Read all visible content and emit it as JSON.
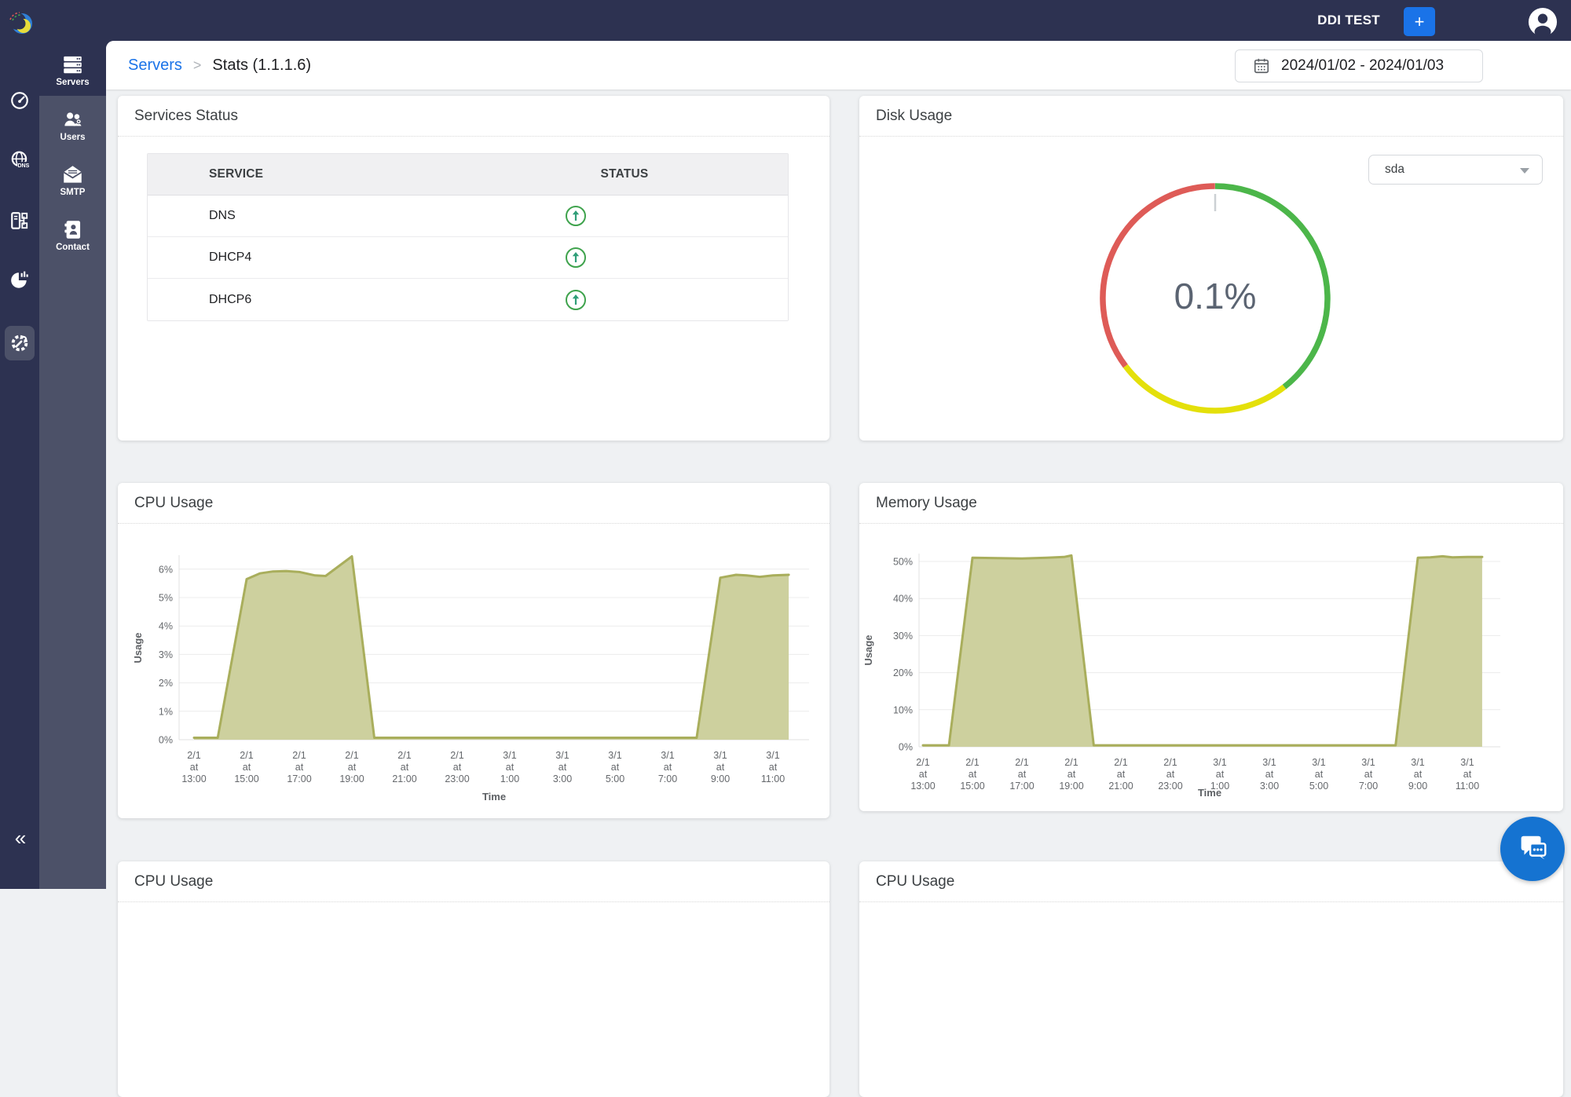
{
  "topbar": {
    "brand": "DDI TEST",
    "add_label": "+"
  },
  "breadcrumb": {
    "parent": "Servers",
    "separator": ">",
    "current": "Stats (1.1.1.6)"
  },
  "date_range_value": "2024/01/02 - 2024/01/03",
  "sidebar": {
    "collapse_label": "«",
    "primary": [
      {
        "name": "logo"
      },
      {
        "name": "dashboard"
      },
      {
        "name": "dns"
      },
      {
        "name": "ipam"
      },
      {
        "name": "reports"
      },
      {
        "name": "settings",
        "selected": true
      }
    ],
    "secondary": [
      {
        "label": "Servers",
        "selected": true
      },
      {
        "label": "Users",
        "selected": false
      },
      {
        "label": "SMTP",
        "selected": false
      },
      {
        "label": "Contact",
        "selected": false
      }
    ]
  },
  "cards": {
    "services": {
      "title": "Services Status",
      "headers": [
        "SERVICE",
        "STATUS"
      ],
      "rows": [
        {
          "service": "DNS",
          "status": "up"
        },
        {
          "service": "DHCP4",
          "status": "up"
        },
        {
          "service": "DHCP6",
          "status": "up"
        }
      ]
    },
    "disk": {
      "title": "Disk Usage",
      "device": "sda",
      "value_label": "0.1%"
    },
    "cpu": {
      "title": "CPU Usage"
    },
    "memory": {
      "title": "Memory Usage"
    },
    "bottom_left": {
      "title": "CPU Usage"
    },
    "bottom_right": {
      "title": "CPU Usage"
    }
  },
  "status_colors": {
    "up_green": "#3fa34d",
    "arrow_green": "#2f9e78"
  },
  "chart_data": [
    {
      "id": "cpu",
      "type": "area",
      "title": "CPU Usage",
      "xlabel": "Time",
      "ylabel": "Usage",
      "ylim": [
        0,
        6.5
      ],
      "line_color": "#a9ae5c",
      "fill_color": "#cdd09e",
      "y_ticks": [
        {
          "v": 0,
          "label": "0%"
        },
        {
          "v": 1,
          "label": "1%"
        },
        {
          "v": 2,
          "label": "2%"
        },
        {
          "v": 3,
          "label": "3%"
        },
        {
          "v": 4,
          "label": "4%"
        },
        {
          "v": 5,
          "label": "5%"
        },
        {
          "v": 6,
          "label": "6%"
        }
      ],
      "x_ticks": [
        {
          "h": 0,
          "lines": [
            "2/1",
            "at",
            "13:00"
          ]
        },
        {
          "h": 2,
          "lines": [
            "2/1",
            "at",
            "15:00"
          ]
        },
        {
          "h": 4,
          "lines": [
            "2/1",
            "at",
            "17:00"
          ]
        },
        {
          "h": 6,
          "lines": [
            "2/1",
            "at",
            "19:00"
          ]
        },
        {
          "h": 8,
          "lines": [
            "2/1",
            "at",
            "21:00"
          ]
        },
        {
          "h": 10,
          "lines": [
            "2/1",
            "at",
            "23:00"
          ]
        },
        {
          "h": 12,
          "lines": [
            "3/1",
            "at",
            "1:00"
          ]
        },
        {
          "h": 14,
          "lines": [
            "3/1",
            "at",
            "3:00"
          ]
        },
        {
          "h": 16,
          "lines": [
            "3/1",
            "at",
            "5:00"
          ]
        },
        {
          "h": 18,
          "lines": [
            "3/1",
            "at",
            "7:00"
          ]
        },
        {
          "h": 20,
          "lines": [
            "3/1",
            "at",
            "9:00"
          ]
        },
        {
          "h": 22,
          "lines": [
            "3/1",
            "at",
            "11:00"
          ]
        }
      ],
      "points": [
        [
          0,
          0.07
        ],
        [
          0.9,
          0.07
        ],
        [
          2,
          5.65
        ],
        [
          2.5,
          5.85
        ],
        [
          3,
          5.92
        ],
        [
          3.5,
          5.93
        ],
        [
          4,
          5.9
        ],
        [
          4.6,
          5.78
        ],
        [
          5,
          5.76
        ],
        [
          6,
          6.45
        ],
        [
          6.85,
          0.07
        ],
        [
          9,
          0.07
        ],
        [
          12,
          0.07
        ],
        [
          15,
          0.07
        ],
        [
          18,
          0.07
        ],
        [
          19.1,
          0.07
        ],
        [
          20,
          5.7
        ],
        [
          20.6,
          5.8
        ],
        [
          21,
          5.78
        ],
        [
          21.5,
          5.73
        ],
        [
          22,
          5.78
        ],
        [
          22.6,
          5.8
        ]
      ]
    },
    {
      "id": "memory",
      "type": "area",
      "title": "Memory Usage",
      "xlabel": "Time",
      "ylabel": "Usage",
      "ylim": [
        0,
        52
      ],
      "line_color": "#a9ae5c",
      "fill_color": "#cdd09e",
      "y_ticks": [
        {
          "v": 0,
          "label": "0%"
        },
        {
          "v": 10,
          "label": "10%"
        },
        {
          "v": 20,
          "label": "20%"
        },
        {
          "v": 30,
          "label": "30%"
        },
        {
          "v": 40,
          "label": "40%"
        },
        {
          "v": 50,
          "label": "50%"
        }
      ],
      "x_ticks": [
        {
          "h": 0,
          "lines": [
            "2/1",
            "at",
            "13:00"
          ]
        },
        {
          "h": 2,
          "lines": [
            "2/1",
            "at",
            "15:00"
          ]
        },
        {
          "h": 4,
          "lines": [
            "2/1",
            "at",
            "17:00"
          ]
        },
        {
          "h": 6,
          "lines": [
            "2/1",
            "at",
            "19:00"
          ]
        },
        {
          "h": 8,
          "lines": [
            "2/1",
            "at",
            "21:00"
          ]
        },
        {
          "h": 10,
          "lines": [
            "2/1",
            "at",
            "23:00"
          ]
        },
        {
          "h": 12,
          "lines": [
            "3/1",
            "at",
            "1:00"
          ]
        },
        {
          "h": 14,
          "lines": [
            "3/1",
            "at",
            "3:00"
          ]
        },
        {
          "h": 16,
          "lines": [
            "3/1",
            "at",
            "5:00"
          ]
        },
        {
          "h": 18,
          "lines": [
            "3/1",
            "at",
            "7:00"
          ]
        },
        {
          "h": 20,
          "lines": [
            "3/1",
            "at",
            "9:00"
          ]
        },
        {
          "h": 22,
          "lines": [
            "3/1",
            "at",
            "11:00"
          ]
        }
      ],
      "points": [
        [
          0,
          0.4
        ],
        [
          1.05,
          0.4
        ],
        [
          2,
          51
        ],
        [
          3,
          50.9
        ],
        [
          4,
          50.8
        ],
        [
          5,
          51
        ],
        [
          5.7,
          51.2
        ],
        [
          6,
          51.6
        ],
        [
          6.9,
          0.4
        ],
        [
          10,
          0.4
        ],
        [
          14,
          0.4
        ],
        [
          18,
          0.4
        ],
        [
          19.1,
          0.4
        ],
        [
          20,
          51
        ],
        [
          20.5,
          51.1
        ],
        [
          21,
          51.4
        ],
        [
          21.4,
          51.1
        ],
        [
          22,
          51.2
        ],
        [
          22.6,
          51.2
        ]
      ]
    },
    {
      "id": "disk_gauge",
      "type": "gauge",
      "title": "Disk Usage",
      "value": 0.1,
      "value_label": "0.1%",
      "pointer_color": "#ccd0d4",
      "segments": [
        {
          "color": "#4cb64a",
          "from_deg": 0,
          "to_deg": 142
        },
        {
          "color": "#e4e00a",
          "from_deg": 142,
          "to_deg": 233
        },
        {
          "color": "#de5b57",
          "from_deg": 233,
          "to_deg": 360
        }
      ]
    }
  ]
}
